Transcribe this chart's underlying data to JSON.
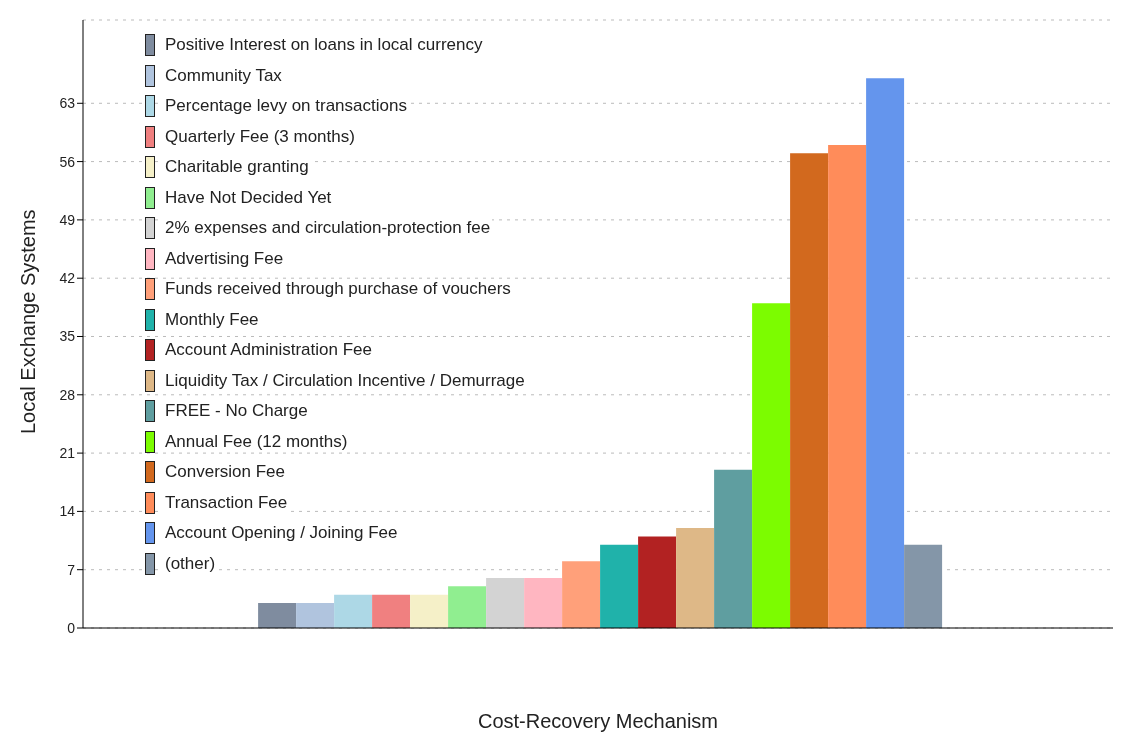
{
  "chart_data": {
    "type": "bar",
    "xlabel": "Cost-Recovery Mechanism",
    "ylabel": "Local Exchange Systems",
    "categories": [
      null
    ],
    "series": [
      {
        "name": "Positive Interest on loans in local currency",
        "color": "#7f8c9f",
        "values": [
          3
        ]
      },
      {
        "name": "Community Tax",
        "color": "#b0c4de",
        "values": [
          3
        ]
      },
      {
        "name": "Percentage levy on transactions",
        "color": "#add8e6",
        "values": [
          4
        ]
      },
      {
        "name": "Quarterly Fee (3 months)",
        "color": "#f08080",
        "values": [
          4
        ]
      },
      {
        "name": "Charitable granting",
        "color": "#f5f0c8",
        "values": [
          4
        ]
      },
      {
        "name": "Have Not Decided Yet",
        "color": "#90ee90",
        "values": [
          5
        ]
      },
      {
        "name": "2% expenses and circulation-protection fee",
        "color": "#d3d3d3",
        "values": [
          6
        ]
      },
      {
        "name": "Advertising Fee",
        "color": "#ffb6c1",
        "values": [
          6
        ]
      },
      {
        "name": "Funds received through purchase of vouchers",
        "color": "#ffa07a",
        "values": [
          8
        ]
      },
      {
        "name": "Monthly Fee",
        "color": "#20b2aa",
        "values": [
          10
        ]
      },
      {
        "name": "Account Administration Fee",
        "color": "#b22222",
        "values": [
          11
        ]
      },
      {
        "name": "Liquidity Tax / Circulation Incentive / Demurrage",
        "color": "#deb887",
        "values": [
          12
        ]
      },
      {
        "name": "FREE - No Charge",
        "color": "#5f9ea0",
        "values": [
          19
        ]
      },
      {
        "name": "Annual Fee (12 months)",
        "color": "#7cfc00",
        "values": [
          39
        ]
      },
      {
        "name": "Conversion Fee",
        "color": "#d2691e",
        "values": [
          57
        ]
      },
      {
        "name": "Transaction Fee",
        "color": "#ff8c5a",
        "values": [
          58
        ]
      },
      {
        "name": "Account Opening / Joining Fee",
        "color": "#6495ed",
        "values": [
          66
        ]
      },
      {
        "name": "(other)",
        "color": "#8496a8",
        "values": [
          10
        ]
      }
    ],
    "ylim": [
      0,
      73
    ],
    "yticks": [
      0,
      7,
      14,
      21,
      28,
      35,
      42,
      49,
      56,
      63
    ],
    "grid": "y",
    "legend": "top left"
  }
}
